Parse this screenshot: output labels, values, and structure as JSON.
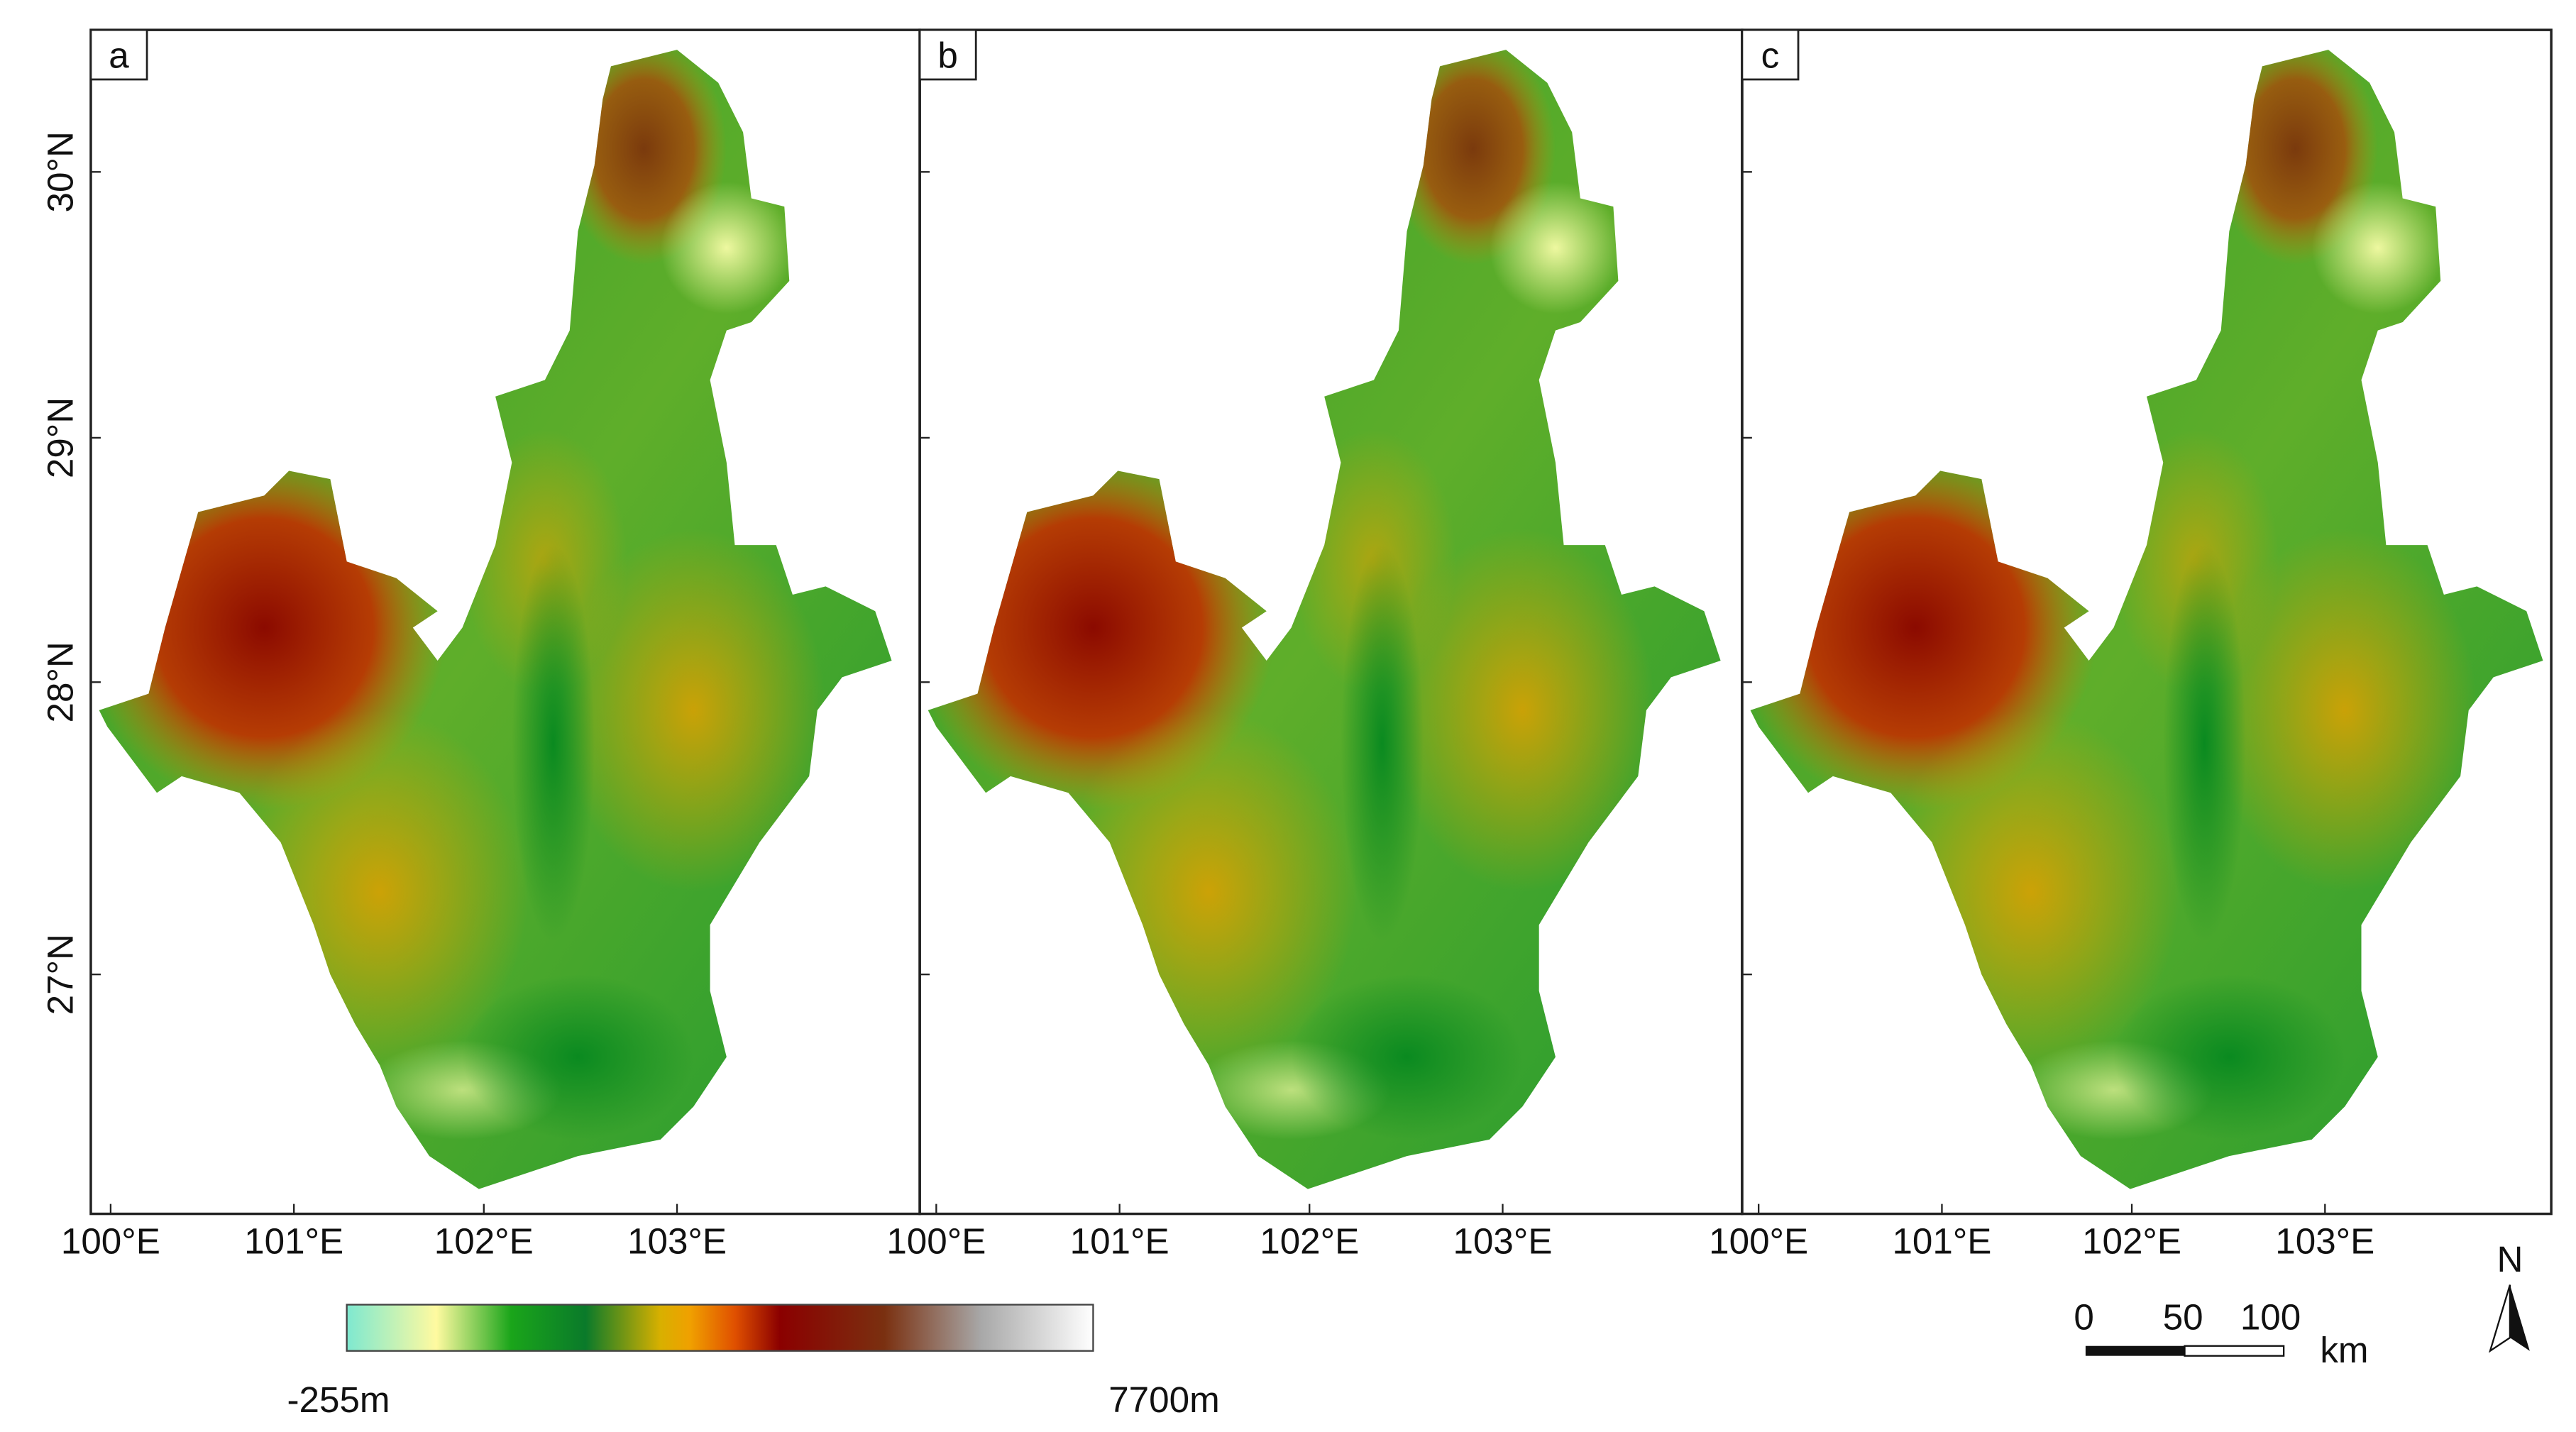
{
  "panels": [
    {
      "label": "a"
    },
    {
      "label": "b"
    },
    {
      "label": "c"
    }
  ],
  "latitude_labels": [
    "30°N",
    "29°N",
    "28°N",
    "27°N"
  ],
  "longitude_labels": [
    "100°E",
    "101°E",
    "102°E",
    "103°E"
  ],
  "colorbar": {
    "min_label": "-255m",
    "max_label": "7700m"
  },
  "scale_bar": {
    "labels": [
      "0",
      "50",
      "100"
    ],
    "unit": "km"
  },
  "north_arrow": "N"
}
